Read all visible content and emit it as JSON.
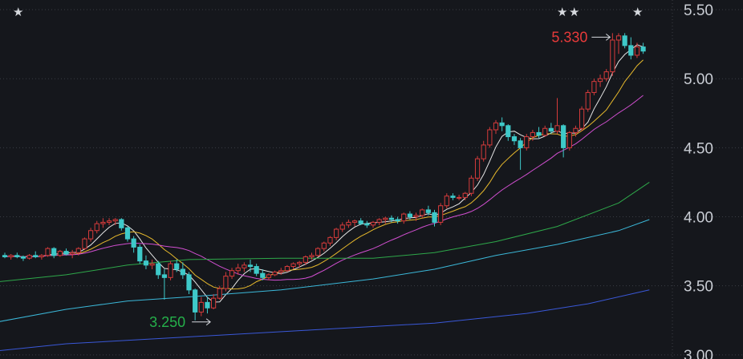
{
  "chart_data": {
    "type": "candlestick",
    "y_axis": {
      "position": "right",
      "ticks": [
        "5.50",
        "5.00",
        "4.50",
        "4.00",
        "3.50",
        "3.00"
      ],
      "range": [
        2.97,
        5.57
      ]
    },
    "grid": true,
    "colors": {
      "background": "#15171c",
      "grid": "#3a3d44",
      "up": "#d63b3b",
      "down": "#3ec9c9",
      "ma5": "#e6e6e6",
      "ma10": "#e7b92c",
      "ma20": "#d24fd1",
      "ma60": "#2ea84a",
      "ma120": "#3bb8d9",
      "ma250": "#3a58d8"
    },
    "annotations": {
      "high": {
        "label": "5.330",
        "value": 5.33
      },
      "low": {
        "label": "3.250",
        "value": 3.25
      }
    },
    "markers": [
      "star",
      "star",
      "star",
      "star"
    ],
    "candles": [
      [
        3.72,
        3.74,
        3.7,
        3.71
      ],
      [
        3.71,
        3.73,
        3.69,
        3.72
      ],
      [
        3.72,
        3.74,
        3.7,
        3.71
      ],
      [
        3.71,
        3.72,
        3.68,
        3.7
      ],
      [
        3.7,
        3.73,
        3.69,
        3.72
      ],
      [
        3.72,
        3.75,
        3.7,
        3.71
      ],
      [
        3.71,
        3.73,
        3.69,
        3.72
      ],
      [
        3.72,
        3.78,
        3.71,
        3.77
      ],
      [
        3.77,
        3.78,
        3.7,
        3.72
      ],
      [
        3.72,
        3.76,
        3.71,
        3.75
      ],
      [
        3.75,
        3.77,
        3.72,
        3.73
      ],
      [
        3.73,
        3.76,
        3.7,
        3.74
      ],
      [
        3.74,
        3.78,
        3.72,
        3.77
      ],
      [
        3.77,
        3.85,
        3.76,
        3.84
      ],
      [
        3.84,
        3.92,
        3.82,
        3.9
      ],
      [
        3.9,
        3.97,
        3.88,
        3.95
      ],
      [
        3.95,
        3.99,
        3.92,
        3.96
      ],
      [
        3.96,
        3.99,
        3.94,
        3.97
      ],
      [
        3.97,
        3.99,
        3.94,
        3.98
      ],
      [
        3.98,
        3.99,
        3.9,
        3.92
      ],
      [
        3.92,
        3.93,
        3.82,
        3.84
      ],
      [
        3.84,
        3.86,
        3.74,
        3.78
      ],
      [
        3.78,
        3.8,
        3.66,
        3.68
      ],
      [
        3.68,
        3.72,
        3.62,
        3.65
      ],
      [
        3.65,
        3.69,
        3.62,
        3.66
      ],
      [
        3.66,
        3.68,
        3.55,
        3.58
      ],
      [
        3.58,
        3.62,
        3.4,
        3.56
      ],
      [
        3.56,
        3.68,
        3.54,
        3.66
      ],
      [
        3.66,
        3.69,
        3.6,
        3.62
      ],
      [
        3.62,
        3.67,
        3.55,
        3.58
      ],
      [
        3.58,
        3.6,
        3.44,
        3.47
      ],
      [
        3.47,
        3.48,
        3.25,
        3.31
      ],
      [
        3.31,
        3.42,
        3.28,
        3.38
      ],
      [
        3.38,
        3.42,
        3.3,
        3.34
      ],
      [
        3.34,
        3.44,
        3.33,
        3.41
      ],
      [
        3.41,
        3.5,
        3.4,
        3.48
      ],
      [
        3.48,
        3.6,
        3.46,
        3.57
      ],
      [
        3.57,
        3.63,
        3.55,
        3.61
      ],
      [
        3.61,
        3.66,
        3.58,
        3.63
      ],
      [
        3.63,
        3.67,
        3.6,
        3.65
      ],
      [
        3.65,
        3.69,
        3.6,
        3.64
      ],
      [
        3.64,
        3.66,
        3.57,
        3.59
      ],
      [
        3.59,
        3.62,
        3.54,
        3.56
      ],
      [
        3.56,
        3.59,
        3.54,
        3.58
      ],
      [
        3.58,
        3.61,
        3.57,
        3.6
      ],
      [
        3.6,
        3.63,
        3.58,
        3.61
      ],
      [
        3.61,
        3.65,
        3.6,
        3.64
      ],
      [
        3.64,
        3.67,
        3.62,
        3.66
      ],
      [
        3.66,
        3.68,
        3.63,
        3.67
      ],
      [
        3.67,
        3.72,
        3.65,
        3.71
      ],
      [
        3.71,
        3.74,
        3.69,
        3.72
      ],
      [
        3.72,
        3.78,
        3.71,
        3.77
      ],
      [
        3.77,
        3.82,
        3.75,
        3.81
      ],
      [
        3.81,
        3.86,
        3.79,
        3.85
      ],
      [
        3.85,
        3.92,
        3.83,
        3.91
      ],
      [
        3.91,
        3.96,
        3.89,
        3.94
      ],
      [
        3.94,
        3.98,
        3.92,
        3.96
      ],
      [
        3.96,
        3.98,
        3.93,
        3.97
      ],
      [
        3.97,
        3.99,
        3.94,
        3.95
      ],
      [
        3.95,
        3.97,
        3.92,
        3.94
      ],
      [
        3.94,
        3.97,
        3.92,
        3.96
      ],
      [
        3.96,
        3.99,
        3.94,
        3.98
      ],
      [
        3.98,
        4.0,
        3.95,
        3.99
      ],
      [
        3.99,
        4.01,
        3.96,
        3.98
      ],
      [
        3.98,
        4.0,
        3.95,
        3.97
      ],
      [
        3.97,
        4.03,
        3.95,
        4.02
      ],
      [
        4.02,
        4.04,
        3.98,
        4.0
      ],
      [
        4.0,
        4.03,
        3.97,
        4.01
      ],
      [
        4.01,
        4.06,
        3.99,
        4.05
      ],
      [
        4.05,
        4.08,
        4.01,
        4.03
      ],
      [
        4.03,
        4.05,
        3.93,
        3.96
      ],
      [
        3.96,
        4.1,
        3.94,
        4.08
      ],
      [
        4.08,
        4.17,
        4.06,
        4.15
      ],
      [
        4.15,
        4.17,
        4.12,
        4.14
      ],
      [
        4.14,
        4.16,
        4.12,
        4.14
      ],
      [
        4.14,
        4.18,
        4.12,
        4.17
      ],
      [
        4.17,
        4.3,
        4.15,
        4.28
      ],
      [
        4.28,
        4.44,
        4.26,
        4.42
      ],
      [
        4.42,
        4.55,
        4.4,
        4.52
      ],
      [
        4.52,
        4.65,
        4.5,
        4.63
      ],
      [
        4.63,
        4.7,
        4.6,
        4.68
      ],
      [
        4.68,
        4.72,
        4.62,
        4.66
      ],
      [
        4.66,
        4.67,
        4.55,
        4.58
      ],
      [
        4.58,
        4.6,
        4.52,
        4.55
      ],
      [
        4.55,
        4.57,
        4.34,
        4.5
      ],
      [
        4.5,
        4.6,
        4.48,
        4.58
      ],
      [
        4.58,
        4.63,
        4.55,
        4.61
      ],
      [
        4.61,
        4.65,
        4.57,
        4.59
      ],
      [
        4.59,
        4.66,
        4.58,
        4.64
      ],
      [
        4.64,
        4.68,
        4.6,
        4.62
      ],
      [
        4.62,
        4.86,
        4.6,
        4.66
      ],
      [
        4.66,
        4.67,
        4.43,
        4.5
      ],
      [
        4.5,
        4.62,
        4.48,
        4.61
      ],
      [
        4.61,
        4.66,
        4.58,
        4.64
      ],
      [
        4.64,
        4.8,
        4.62,
        4.78
      ],
      [
        4.78,
        4.92,
        4.76,
        4.9
      ],
      [
        4.9,
        5.0,
        4.88,
        4.98
      ],
      [
        4.98,
        5.03,
        4.94,
        5.0
      ],
      [
        5.0,
        5.07,
        4.98,
        5.05
      ],
      [
        5.05,
        5.33,
        5.02,
        5.28
      ],
      [
        5.28,
        5.33,
        5.18,
        5.31
      ],
      [
        5.31,
        5.33,
        5.22,
        5.24
      ],
      [
        5.24,
        5.3,
        5.14,
        5.17
      ],
      [
        5.17,
        5.26,
        5.15,
        5.23
      ],
      [
        5.23,
        5.26,
        5.18,
        5.2
      ]
    ]
  }
}
